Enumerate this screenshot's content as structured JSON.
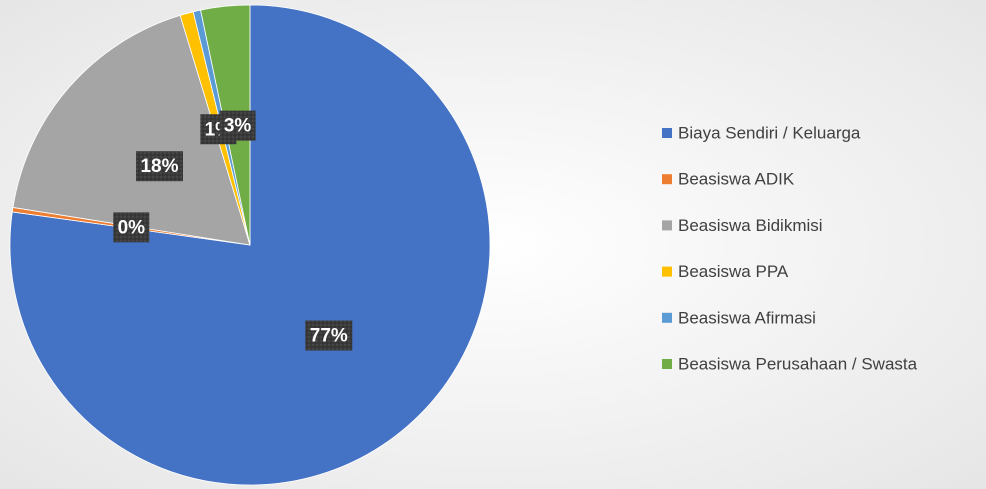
{
  "chart_data": {
    "type": "pie",
    "categories": [
      "Biaya Sendiri / Keluarga",
      "Beasiswa ADIK",
      "Beasiswa Bidikmisi",
      "Beasiswa PPA",
      "Beasiswa Afirmasi",
      "Beasiswa Perusahaan / Swasta"
    ],
    "values": [
      77.2,
      0.3,
      17.8,
      0.9,
      0.5,
      3.3
    ],
    "value_labels": [
      "77%",
      "0%",
      "18%",
      "1%",
      null,
      "3%"
    ],
    "colors": [
      "#4472c4",
      "#ed7d31",
      "#a5a5a5",
      "#ffc000",
      "#5b9bd5",
      "#70ad47"
    ],
    "legend": "right"
  }
}
